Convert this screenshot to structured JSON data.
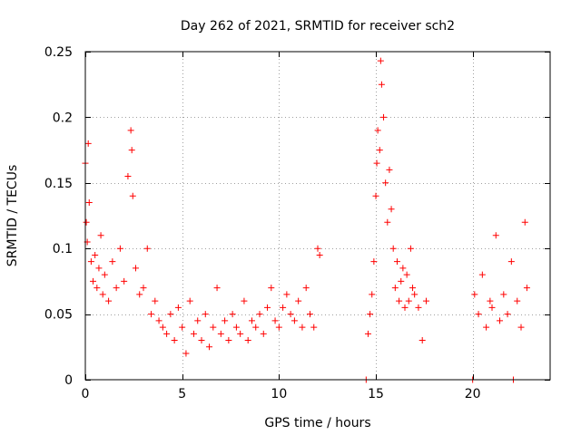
{
  "chart_data": {
    "type": "scatter",
    "title": "Day 262 of 2021, SRMTID for receiver sch2",
    "xlabel": "GPS time / hours",
    "ylabel": "SRMTID / TECUs",
    "xlim": [
      0,
      24
    ],
    "ylim": [
      0,
      0.25
    ],
    "grid": true,
    "marker": "+",
    "color": "#ff0000",
    "x_ticks": [
      0,
      5,
      10,
      15,
      20
    ],
    "y_ticks": [
      0,
      0.05,
      0.1,
      0.15,
      0.2,
      0.25
    ],
    "x_tick_labels": [
      "0",
      "5",
      "10",
      "15",
      "20"
    ],
    "y_tick_labels": [
      "0",
      "0.05",
      "0.1",
      "0.15",
      "0.2",
      "0.25"
    ],
    "series": [
      {
        "name": "SRMTID",
        "points": [
          [
            0.0,
            0.165
          ],
          [
            0.05,
            0.12
          ],
          [
            0.1,
            0.105
          ],
          [
            0.15,
            0.18
          ],
          [
            0.2,
            0.135
          ],
          [
            0.3,
            0.09
          ],
          [
            0.4,
            0.075
          ],
          [
            0.5,
            0.095
          ],
          [
            0.6,
            0.07
          ],
          [
            0.7,
            0.085
          ],
          [
            0.8,
            0.11
          ],
          [
            0.9,
            0.065
          ],
          [
            1.0,
            0.08
          ],
          [
            1.2,
            0.06
          ],
          [
            1.4,
            0.09
          ],
          [
            1.6,
            0.07
          ],
          [
            1.8,
            0.1
          ],
          [
            2.0,
            0.075
          ],
          [
            2.2,
            0.155
          ],
          [
            2.35,
            0.19
          ],
          [
            2.4,
            0.175
          ],
          [
            2.45,
            0.14
          ],
          [
            2.6,
            0.085
          ],
          [
            2.8,
            0.065
          ],
          [
            3.0,
            0.07
          ],
          [
            3.2,
            0.1
          ],
          [
            3.4,
            0.05
          ],
          [
            3.6,
            0.06
          ],
          [
            3.8,
            0.045
          ],
          [
            4.0,
            0.04
          ],
          [
            4.2,
            0.035
          ],
          [
            4.4,
            0.05
          ],
          [
            4.6,
            0.03
          ],
          [
            4.8,
            0.055
          ],
          [
            5.0,
            0.04
          ],
          [
            5.2,
            0.02
          ],
          [
            5.4,
            0.06
          ],
          [
            5.6,
            0.035
          ],
          [
            5.8,
            0.045
          ],
          [
            6.0,
            0.03
          ],
          [
            6.2,
            0.05
          ],
          [
            6.4,
            0.025
          ],
          [
            6.6,
            0.04
          ],
          [
            6.8,
            0.07
          ],
          [
            7.0,
            0.035
          ],
          [
            7.2,
            0.045
          ],
          [
            7.4,
            0.03
          ],
          [
            7.6,
            0.05
          ],
          [
            7.8,
            0.04
          ],
          [
            8.0,
            0.035
          ],
          [
            8.2,
            0.06
          ],
          [
            8.4,
            0.03
          ],
          [
            8.6,
            0.045
          ],
          [
            8.8,
            0.04
          ],
          [
            9.0,
            0.05
          ],
          [
            9.2,
            0.035
          ],
          [
            9.4,
            0.055
          ],
          [
            9.6,
            0.07
          ],
          [
            9.8,
            0.045
          ],
          [
            10.0,
            0.04
          ],
          [
            10.2,
            0.055
          ],
          [
            10.4,
            0.065
          ],
          [
            10.6,
            0.05
          ],
          [
            10.8,
            0.045
          ],
          [
            11.0,
            0.06
          ],
          [
            11.2,
            0.04
          ],
          [
            11.4,
            0.07
          ],
          [
            11.6,
            0.05
          ],
          [
            11.8,
            0.04
          ],
          [
            12.0,
            0.1
          ],
          [
            12.1,
            0.095
          ],
          [
            14.5,
            0.0
          ],
          [
            14.6,
            0.035
          ],
          [
            14.7,
            0.05
          ],
          [
            14.8,
            0.065
          ],
          [
            14.9,
            0.09
          ],
          [
            15.0,
            0.14
          ],
          [
            15.05,
            0.165
          ],
          [
            15.1,
            0.19
          ],
          [
            15.2,
            0.175
          ],
          [
            15.25,
            0.243
          ],
          [
            15.3,
            0.225
          ],
          [
            15.4,
            0.2
          ],
          [
            15.5,
            0.15
          ],
          [
            15.6,
            0.12
          ],
          [
            15.7,
            0.16
          ],
          [
            15.8,
            0.13
          ],
          [
            15.9,
            0.1
          ],
          [
            16.0,
            0.07
          ],
          [
            16.1,
            0.09
          ],
          [
            16.2,
            0.06
          ],
          [
            16.3,
            0.075
          ],
          [
            16.4,
            0.085
          ],
          [
            16.5,
            0.055
          ],
          [
            16.6,
            0.08
          ],
          [
            16.7,
            0.06
          ],
          [
            16.8,
            0.1
          ],
          [
            16.9,
            0.07
          ],
          [
            17.0,
            0.065
          ],
          [
            17.2,
            0.055
          ],
          [
            17.4,
            0.03
          ],
          [
            17.6,
            0.06
          ],
          [
            20.0,
            0.0
          ],
          [
            20.1,
            0.065
          ],
          [
            20.3,
            0.05
          ],
          [
            20.5,
            0.08
          ],
          [
            20.7,
            0.04
          ],
          [
            20.9,
            0.06
          ],
          [
            21.0,
            0.055
          ],
          [
            21.2,
            0.11
          ],
          [
            21.4,
            0.045
          ],
          [
            21.6,
            0.065
          ],
          [
            21.8,
            0.05
          ],
          [
            22.0,
            0.09
          ],
          [
            22.1,
            0.0
          ],
          [
            22.3,
            0.06
          ],
          [
            22.5,
            0.04
          ],
          [
            22.7,
            0.12
          ],
          [
            22.8,
            0.07
          ]
        ]
      }
    ]
  }
}
